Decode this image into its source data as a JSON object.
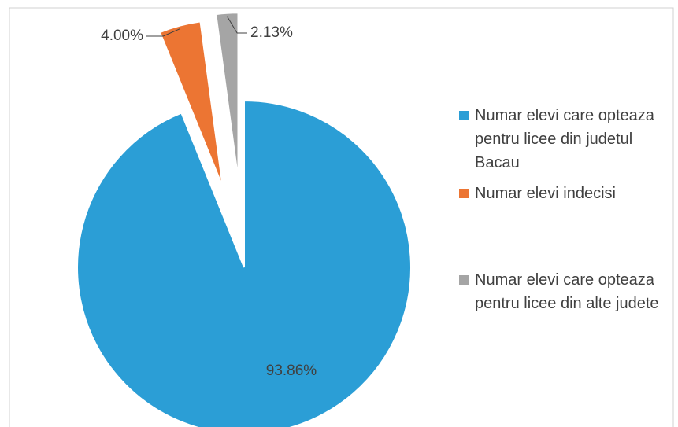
{
  "chart_data": {
    "type": "pie",
    "series": [
      {
        "name": "Numar elevi care opteaza pentru licee din judetul Bacau",
        "color": "#2b9ed6"
      },
      {
        "name": "Numar elevi indecisi",
        "color": "#ec7533"
      },
      {
        "name": "Numar elevi care opteaza pentru licee din alte judete",
        "color": "#a5a5a5"
      }
    ],
    "values": [
      93.86,
      4.0,
      2.13
    ],
    "value_labels": [
      "93.86%",
      "4.00%",
      "2.13%"
    ]
  }
}
